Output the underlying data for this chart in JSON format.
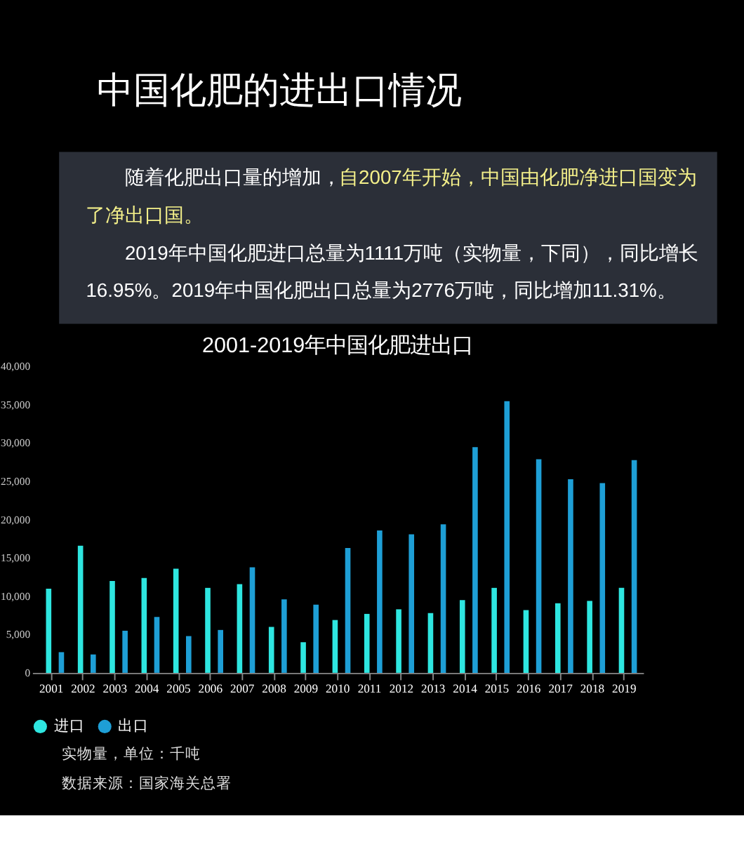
{
  "chart_data": {
    "type": "bar",
    "title": "中国化肥的进出口情况",
    "subtitle": "2001-2019年中国化肥进出口",
    "categories": [
      "2001",
      "2002",
      "2003",
      "2004",
      "2005",
      "2006",
      "2007",
      "2008",
      "2009",
      "2010",
      "2011",
      "2012",
      "2013",
      "2014",
      "2015",
      "2016",
      "2017",
      "2018",
      "2019"
    ],
    "series": [
      {
        "name": "进口",
        "color": "#2ee6e0",
        "values": [
          11000,
          16600,
          12000,
          12400,
          13600,
          11100,
          11600,
          6000,
          4000,
          6900,
          7700,
          8300,
          7800,
          9500,
          11100,
          8200,
          9100,
          9400,
          11100
        ]
      },
      {
        "name": "出口",
        "color": "#1e9fd6",
        "values": [
          2700,
          2400,
          5500,
          7300,
          4800,
          5600,
          13800,
          9600,
          8900,
          16300,
          18600,
          18100,
          19400,
          29500,
          35500,
          27900,
          25300,
          24800,
          27800
        ]
      }
    ],
    "ylim": [
      0,
      40000
    ],
    "yticks": [
      0,
      {
        "value": 5000,
        "label": "5,000"
      },
      {
        "value": 10000,
        "label": "10,000"
      },
      {
        "value": 15000,
        "label": "15,000"
      },
      {
        "value": 20000,
        "label": "20,000"
      },
      {
        "value": 25000,
        "label": "25,000"
      },
      {
        "value": 30000,
        "label": "30,000"
      },
      {
        "value": 35000,
        "label": "35,000"
      },
      {
        "value": 40000,
        "label": "40,000"
      }
    ],
    "grid": false,
    "legend": "bottom",
    "annotations": [
      "随着化肥出口量的增加，",
      "自2007年开始，中国由化肥净进口国变为了净出口国。",
      "2019年中国化肥进口总量为1111万吨（实物量，下同），同比增长16.95%。2019年中国化肥出口总量为2776万吨，同比增加11.31%。",
      "实物量，单位：千吨",
      "数据来源：国家海关总署"
    ]
  }
}
